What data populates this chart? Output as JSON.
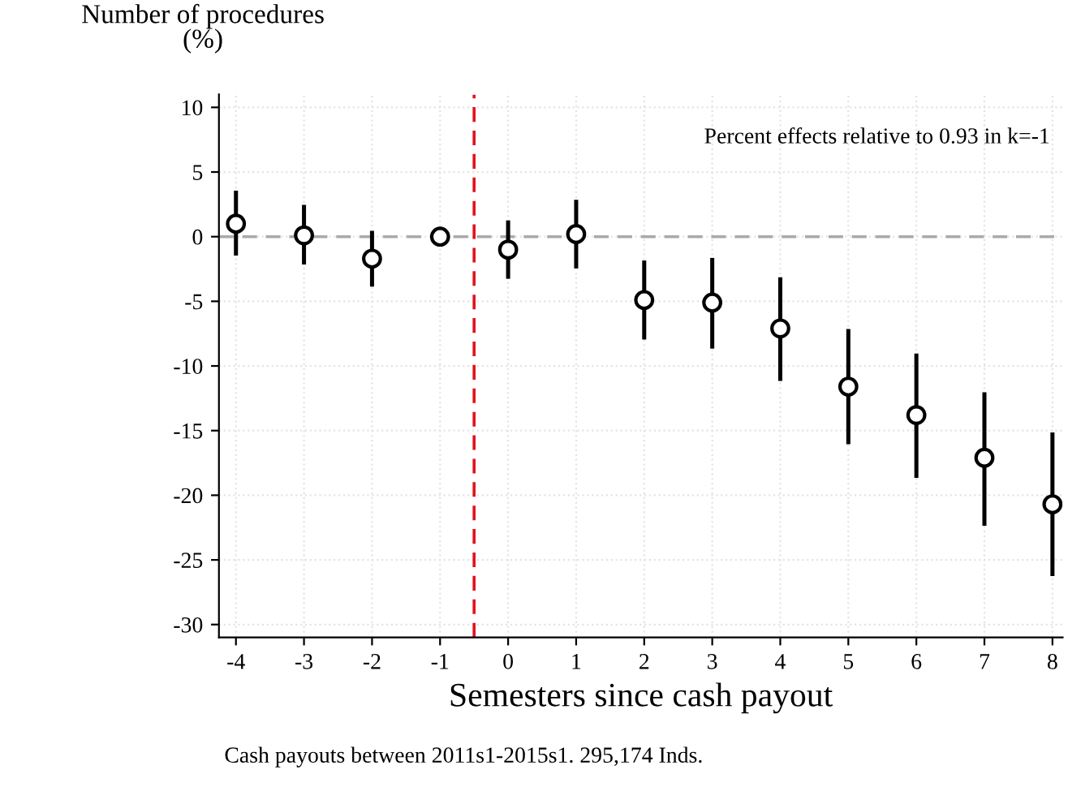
{
  "chart_data": {
    "type": "scatter",
    "ylabel": "Number of procedures\n(%)",
    "xlabel": "Semesters since cash payout",
    "x": [
      -4,
      -3,
      -2,
      -1,
      0,
      1,
      2,
      3,
      4,
      5,
      6,
      7,
      8
    ],
    "series": [
      {
        "color": "#000000",
        "values": [
          1.0,
          0.1,
          -1.7,
          0,
          -1.0,
          0.2,
          -4.9,
          -5.1,
          -7.1,
          -11.6,
          -13.8,
          -17.1,
          -20.7
        ],
        "errors": [
          [
            -1.3,
            3.4
          ],
          [
            -2.0,
            2.3
          ],
          [
            -3.7,
            0.3
          ],
          null,
          [
            -3.1,
            1.1
          ],
          [
            -2.3,
            2.7
          ],
          [
            -7.8,
            -2.0
          ],
          [
            -8.5,
            -1.8
          ],
          [
            -11.0,
            -3.3
          ],
          [
            -15.9,
            -7.3
          ],
          [
            -18.5,
            -9.2
          ],
          [
            -22.2,
            -12.2
          ],
          [
            -26.1,
            -15.3
          ]
        ]
      }
    ],
    "marker": "circle",
    "xlim": [
      -4.25,
      8.15
    ],
    "ylim": [
      -31,
      11
    ],
    "xticks": [
      -4,
      -3,
      -2,
      -1,
      0,
      1,
      2,
      3,
      4,
      5,
      6,
      7,
      8
    ],
    "yticks": [
      10,
      5,
      0,
      -5,
      -10,
      -15,
      -20,
      -25,
      -30
    ],
    "grid": true,
    "ref_lines": [
      {
        "axis": "y",
        "value": 0,
        "color": "#aaaaaa",
        "line_style": "dashed"
      },
      {
        "axis": "x",
        "value": -0.5,
        "color": "#e0141e",
        "line_style": "dashed"
      }
    ],
    "annotations": [
      "Percent effects relative to 0.93 in k=-1",
      "Cash payouts between 2011s1-2015s1. 295,174 Inds."
    ]
  }
}
